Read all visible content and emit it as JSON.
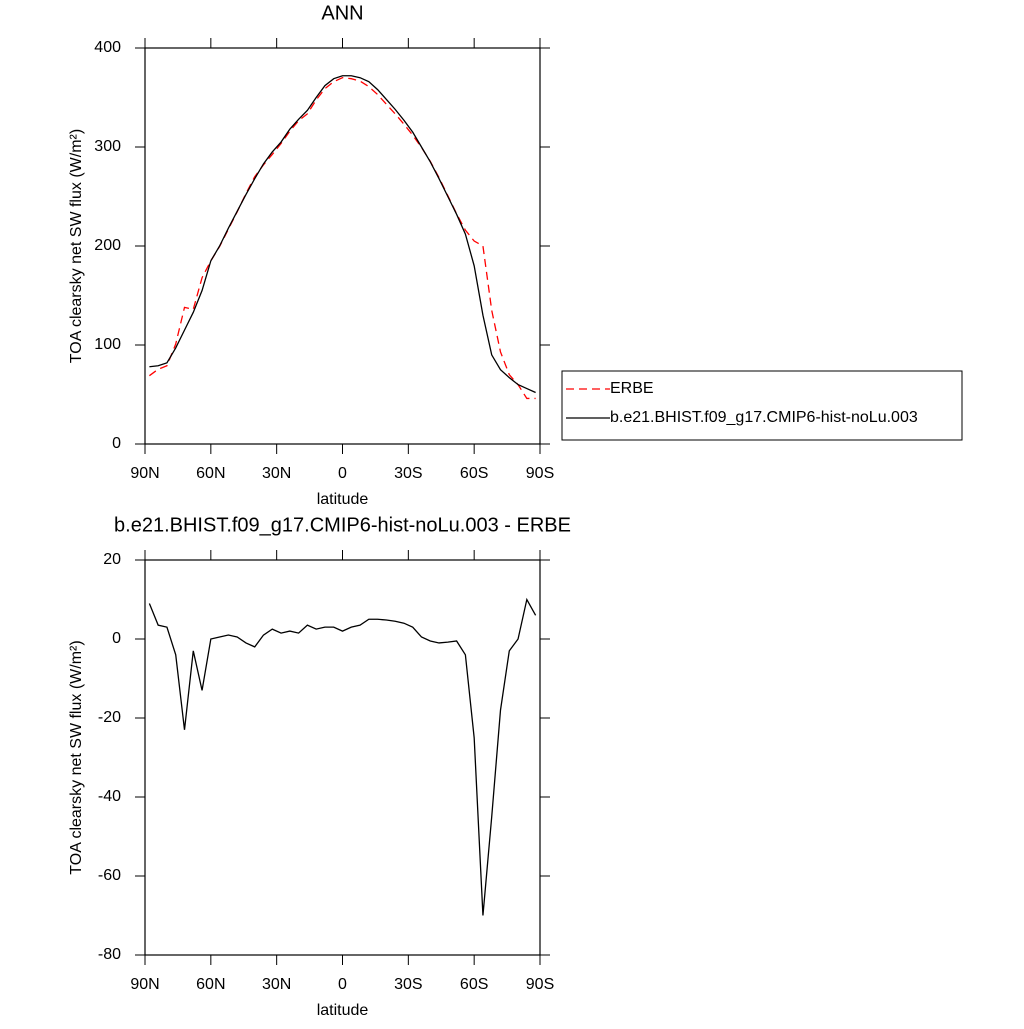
{
  "chart_data": [
    {
      "type": "line",
      "title": "ANN",
      "xlabel": "latitude",
      "ylabel": "TOA clearsky net SW flux (W/m²)",
      "x": [
        88,
        84,
        80,
        76,
        72,
        68,
        64,
        60,
        56,
        52,
        48,
        44,
        40,
        36,
        32,
        28,
        24,
        20,
        16,
        12,
        8,
        4,
        0,
        -4,
        -8,
        -12,
        -16,
        -20,
        -24,
        -28,
        -32,
        -36,
        -40,
        -44,
        -48,
        -52,
        -56,
        -60,
        -64,
        -68,
        -72,
        -76,
        -80,
        -84,
        -88
      ],
      "xlim": [
        90,
        -90
      ],
      "xticks": [
        {
          "value": 90,
          "label": "90N"
        },
        {
          "value": 60,
          "label": "60N"
        },
        {
          "value": 30,
          "label": "30N"
        },
        0,
        {
          "value": -30,
          "label": "30S"
        },
        {
          "value": -60,
          "label": "60S"
        },
        {
          "value": -90,
          "label": "90S"
        }
      ],
      "ylim": [
        0,
        400
      ],
      "yticks": [
        0,
        100,
        200,
        300,
        400
      ],
      "legend": "right",
      "series": [
        {
          "name": "ERBE",
          "color": "#ff0000",
          "linestyle": "dashed",
          "values": [
            69,
            75.5,
            79,
            101,
            138,
            136,
            168,
            185,
            199.5,
            217,
            234.5,
            253,
            270,
            282,
            292.5,
            303.5,
            316,
            326.5,
            333.5,
            347.5,
            359,
            366,
            370,
            369,
            366.5,
            361,
            353,
            343.2,
            333.5,
            323,
            312,
            299.5,
            285.5,
            269,
            250.8,
            232.5,
            216,
            205,
            200,
            135,
            93,
            70,
            60,
            46,
            46
          ]
        },
        {
          "name": "b.e21.BHIST.f09_g17.CMIP6-hist-noLu.003",
          "color": "#000000",
          "linestyle": "solid",
          "values": [
            78,
            79,
            82,
            97,
            115,
            133,
            155,
            185,
            200,
            218,
            235,
            252,
            268,
            283,
            295,
            305,
            318,
            328,
            337,
            350,
            362,
            369,
            372,
            372,
            370,
            366,
            358,
            348,
            338,
            327,
            315,
            300,
            285,
            268,
            250,
            232,
            212,
            180,
            130,
            90,
            75,
            67,
            60,
            56,
            52
          ]
        }
      ]
    },
    {
      "type": "line",
      "title": "b.e21.BHIST.f09_g17.CMIP6-hist-noLu.003 - ERBE",
      "xlabel": "latitude",
      "ylabel": "TOA clearsky net SW flux (W/m²)",
      "x": [
        88,
        84,
        80,
        76,
        72,
        68,
        64,
        60,
        56,
        52,
        48,
        44,
        40,
        36,
        32,
        28,
        24,
        20,
        16,
        12,
        8,
        4,
        0,
        -4,
        -8,
        -12,
        -16,
        -20,
        -24,
        -28,
        -32,
        -36,
        -40,
        -44,
        -48,
        -52,
        -56,
        -60,
        -64,
        -68,
        -72,
        -76,
        -80,
        -84,
        -88
      ],
      "xlim": [
        90,
        -90
      ],
      "xticks": [
        {
          "value": 90,
          "label": "90N"
        },
        {
          "value": 60,
          "label": "60N"
        },
        {
          "value": 30,
          "label": "30N"
        },
        0,
        {
          "value": -30,
          "label": "30S"
        },
        {
          "value": -60,
          "label": "60S"
        },
        {
          "value": -90,
          "label": "90S"
        }
      ],
      "ylim": [
        -80,
        20
      ],
      "yticks": [
        -80,
        -60,
        -40,
        -20,
        0,
        20
      ],
      "series": [
        {
          "color": "#000000",
          "linestyle": "solid",
          "values": [
            9,
            3.5,
            3,
            -4,
            -23,
            -3,
            -13,
            0,
            0.5,
            1,
            0.5,
            -1,
            -2,
            1,
            2.5,
            1.5,
            2,
            1.5,
            3.5,
            2.5,
            3,
            3,
            2,
            3,
            3.5,
            5,
            5,
            4.8,
            4.5,
            4,
            3,
            0.5,
            -0.5,
            -1,
            -0.8,
            -0.5,
            -4,
            -25,
            -70,
            -45,
            -18,
            -3,
            0,
            10,
            6
          ]
        }
      ]
    }
  ]
}
